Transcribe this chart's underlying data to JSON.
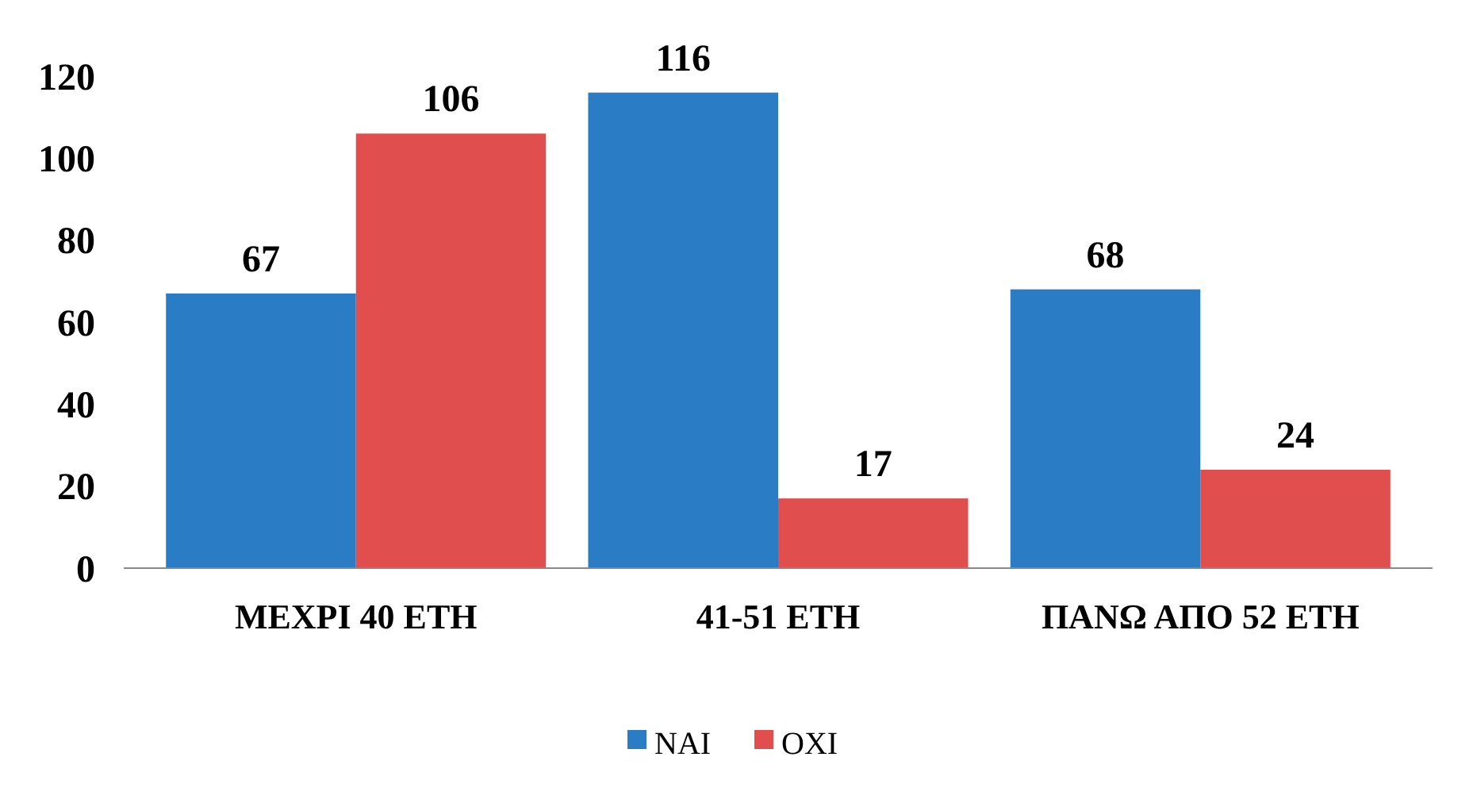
{
  "chart_data": {
    "type": "bar",
    "categories": [
      "ΜΕΧΡΙ 40 ΕΤΗ",
      "41-51 ΕΤΗ",
      "ΠΑΝΩ ΑΠΟ 52 ΕΤΗ"
    ],
    "series": [
      {
        "name": "ΝΑΙ",
        "color": "#2a7cc4",
        "values": [
          67,
          116,
          68
        ]
      },
      {
        "name": "ΟΧΙ",
        "color": "#e04e4e",
        "values": [
          106,
          17,
          24
        ]
      }
    ],
    "ylim": [
      0,
      120
    ],
    "yticks": [
      0,
      20,
      40,
      60,
      80,
      100,
      120
    ],
    "data_labels": true,
    "grid": false,
    "legend": "bottom"
  }
}
